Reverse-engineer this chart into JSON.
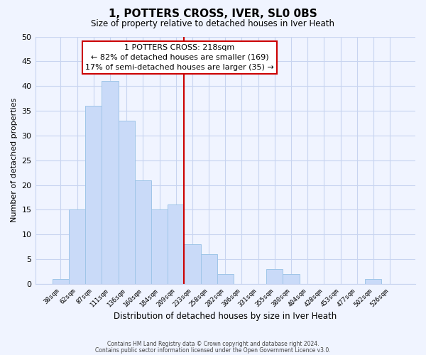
{
  "title": "1, POTTERS CROSS, IVER, SL0 0BS",
  "subtitle": "Size of property relative to detached houses in Iver Heath",
  "xlabel": "Distribution of detached houses by size in Iver Heath",
  "ylabel": "Number of detached properties",
  "bar_color": "#c9daf8",
  "bar_edge_color": "#9fc5e8",
  "bin_labels": [
    "38sqm",
    "62sqm",
    "87sqm",
    "111sqm",
    "136sqm",
    "160sqm",
    "184sqm",
    "209sqm",
    "233sqm",
    "258sqm",
    "282sqm",
    "306sqm",
    "331sqm",
    "355sqm",
    "380sqm",
    "404sqm",
    "428sqm",
    "453sqm",
    "477sqm",
    "502sqm",
    "526sqm"
  ],
  "bar_heights": [
    1,
    15,
    36,
    41,
    33,
    21,
    15,
    16,
    8,
    6,
    2,
    0,
    0,
    3,
    2,
    0,
    0,
    0,
    0,
    1,
    0
  ],
  "ylim": [
    0,
    50
  ],
  "yticks": [
    0,
    5,
    10,
    15,
    20,
    25,
    30,
    35,
    40,
    45,
    50
  ],
  "vline_index": 7.5,
  "vline_color": "#cc0000",
  "annotation_title": "1 POTTERS CROSS: 218sqm",
  "annotation_line1": "← 82% of detached houses are smaller (169)",
  "annotation_line2": "17% of semi-detached houses are larger (35) →",
  "annotation_box_color": "#ffffff",
  "annotation_box_edge": "#cc0000",
  "footer_line1": "Contains HM Land Registry data © Crown copyright and database right 2024.",
  "footer_line2": "Contains public sector information licensed under the Open Government Licence v3.0.",
  "background_color": "#f0f4ff",
  "plot_bg_color": "#f0f4ff",
  "grid_color": "#c8d4f0"
}
